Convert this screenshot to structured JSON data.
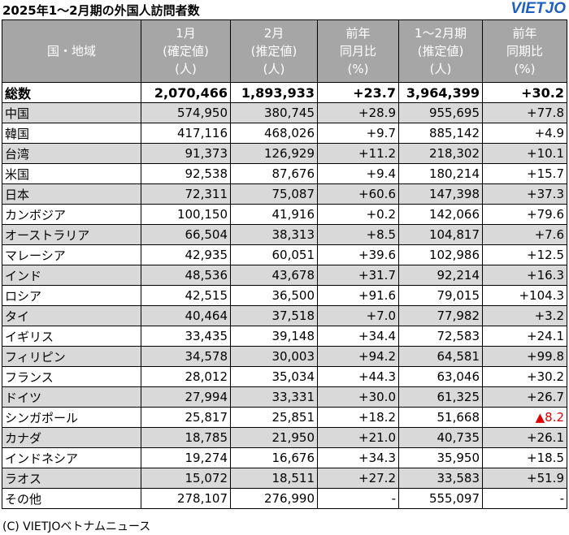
{
  "header": {
    "title": "2025年1～2月期の外国人訪問者数",
    "logo": "VIETJO"
  },
  "table": {
    "columns": [
      [
        "国・地域"
      ],
      [
        "1月",
        "(確定値)",
        "(人)"
      ],
      [
        "2月",
        "(推定値)",
        "(人)"
      ],
      [
        "前年",
        "同月比",
        "(%)"
      ],
      [
        "1～2月期",
        "(推定値)",
        "(人)"
      ],
      [
        "前年",
        "同期比",
        "(%)"
      ]
    ],
    "total": [
      "総数",
      "2,070,466",
      "1,893,933",
      "+23.7",
      "3,964,399",
      "+30.2"
    ],
    "rows": [
      [
        "中国",
        "574,950",
        "380,745",
        "+28.9",
        "955,695",
        "+77.8"
      ],
      [
        "韓国",
        "417,116",
        "468,026",
        "+9.7",
        "885,142",
        "+4.9"
      ],
      [
        "台湾",
        "91,373",
        "126,929",
        "+11.2",
        "218,302",
        "+10.1"
      ],
      [
        "米国",
        "92,538",
        "87,676",
        "+9.4",
        "180,214",
        "+15.7"
      ],
      [
        "日本",
        "72,311",
        "75,087",
        "+60.6",
        "147,398",
        "+37.3"
      ],
      [
        "カンボジア",
        "100,150",
        "41,916",
        "+0.2",
        "142,066",
        "+79.6"
      ],
      [
        "オーストラリア",
        "66,504",
        "38,313",
        "+8.5",
        "104,817",
        "+7.6"
      ],
      [
        "マレーシア",
        "42,935",
        "60,051",
        "+39.6",
        "102,986",
        "+12.5"
      ],
      [
        "インド",
        "48,536",
        "43,678",
        "+31.7",
        "92,214",
        "+16.3"
      ],
      [
        "ロシア",
        "42,515",
        "36,500",
        "+91.6",
        "79,015",
        "+104.3"
      ],
      [
        "タイ",
        "40,464",
        "37,518",
        "+7.0",
        "77,982",
        "+3.2"
      ],
      [
        "イギリス",
        "33,435",
        "39,148",
        "+34.4",
        "72,583",
        "+24.1"
      ],
      [
        "フィリピン",
        "34,578",
        "30,003",
        "+94.2",
        "64,581",
        "+99.8"
      ],
      [
        "フランス",
        "28,012",
        "35,034",
        "+44.3",
        "63,046",
        "+30.2"
      ],
      [
        "ドイツ",
        "27,994",
        "33,331",
        "+30.0",
        "61,325",
        "+26.7"
      ],
      [
        "シンガポール",
        "25,817",
        "25,851",
        "+18.2",
        "51,668",
        "▲8.2"
      ],
      [
        "カナダ",
        "18,785",
        "21,950",
        "+21.0",
        "40,735",
        "+26.1"
      ],
      [
        "インドネシア",
        "19,274",
        "16,676",
        "+34.3",
        "35,950",
        "+18.5"
      ],
      [
        "ラオス",
        "15,072",
        "18,511",
        "+27.2",
        "33,583",
        "+51.9"
      ],
      [
        "その他",
        "278,107",
        "276,990",
        "-",
        "555,097",
        "-"
      ]
    ]
  },
  "footer": "(C) VIETJOベトナムニュース"
}
